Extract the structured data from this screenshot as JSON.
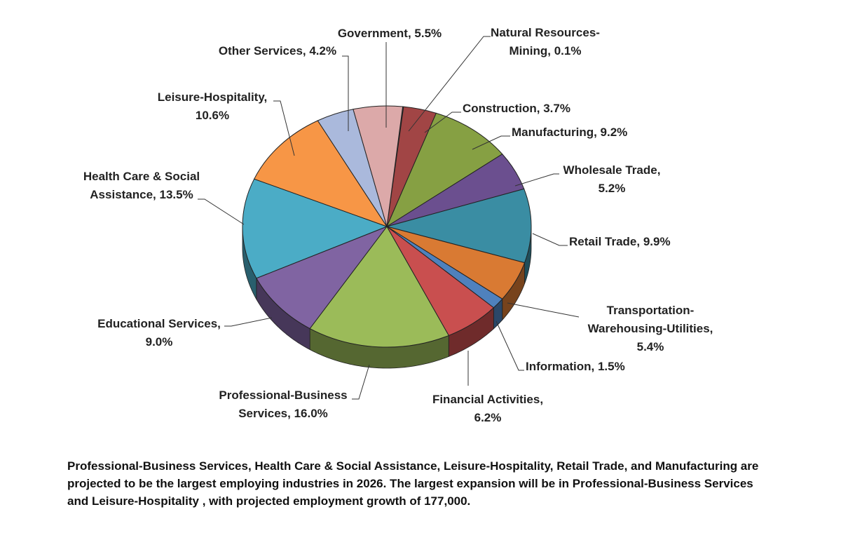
{
  "chart_data": {
    "type": "pie",
    "title": "",
    "style": "3d-exploded-pie",
    "slices": [
      {
        "label": "Natural Resources-Mining",
        "value": 0.1,
        "color": "#3a3a3a",
        "text": [
          "Natural Resources-",
          "Mining, 0.1%"
        ]
      },
      {
        "label": "Construction",
        "value": 3.7,
        "color": "#a14545",
        "text": [
          "Construction, 3.7%"
        ]
      },
      {
        "label": "Manufacturing",
        "value": 9.2,
        "color": "#86a043",
        "text": [
          "Manufacturing, 9.2%"
        ]
      },
      {
        "label": "Wholesale Trade",
        "value": 5.2,
        "color": "#6b4f8f",
        "text": [
          "Wholesale Trade,",
          "5.2%"
        ]
      },
      {
        "label": "Retail Trade",
        "value": 9.9,
        "color": "#3a8da3",
        "text": [
          "Retail Trade, 9.9%"
        ]
      },
      {
        "label": "Transportation-Warehousing-Utilities",
        "value": 5.4,
        "color": "#d97a33",
        "text": [
          "Transportation-",
          "Warehousing-Utilities,",
          "5.4%"
        ]
      },
      {
        "label": "Information",
        "value": 1.5,
        "color": "#4f81bd",
        "text": [
          "Information, 1.5%"
        ]
      },
      {
        "label": "Financial Activities",
        "value": 6.2,
        "color": "#c94f4f",
        "text": [
          "Financial Activities,",
          "6.2%"
        ]
      },
      {
        "label": "Professional-Business Services",
        "value": 16.0,
        "color": "#9bbb59",
        "text": [
          "Professional-Business",
          "Services, 16.0%"
        ]
      },
      {
        "label": "Educational Services",
        "value": 9.0,
        "color": "#8064a2",
        "text": [
          "Educational Services,",
          "9.0%"
        ]
      },
      {
        "label": "Health Care & Social Assistance",
        "value": 13.5,
        "color": "#4bacc6",
        "text": [
          "Health Care & Social",
          "Assistance, 13.5%"
        ]
      },
      {
        "label": "Leisure-Hospitality",
        "value": 10.6,
        "color": "#f79646",
        "text": [
          "Leisure-Hospitality,",
          "10.6%"
        ]
      },
      {
        "label": "Other Services",
        "value": 4.2,
        "color": "#aab9dc",
        "text": [
          "Other Services, 4.2%"
        ]
      },
      {
        "label": "Government",
        "value": 5.5,
        "color": "#dca9a9",
        "text": [
          "Government, 5.5%"
        ]
      }
    ]
  },
  "caption": "Professional-Business Services, Health Care & Social Assistance, Leisure-Hospitality, Retail Trade, and Manufacturing are projected to be the largest employing industries in 2026.  The largest expansion will be in Professional-Business Services and Leisure-Hospitality , with projected employment growth of 177,000."
}
